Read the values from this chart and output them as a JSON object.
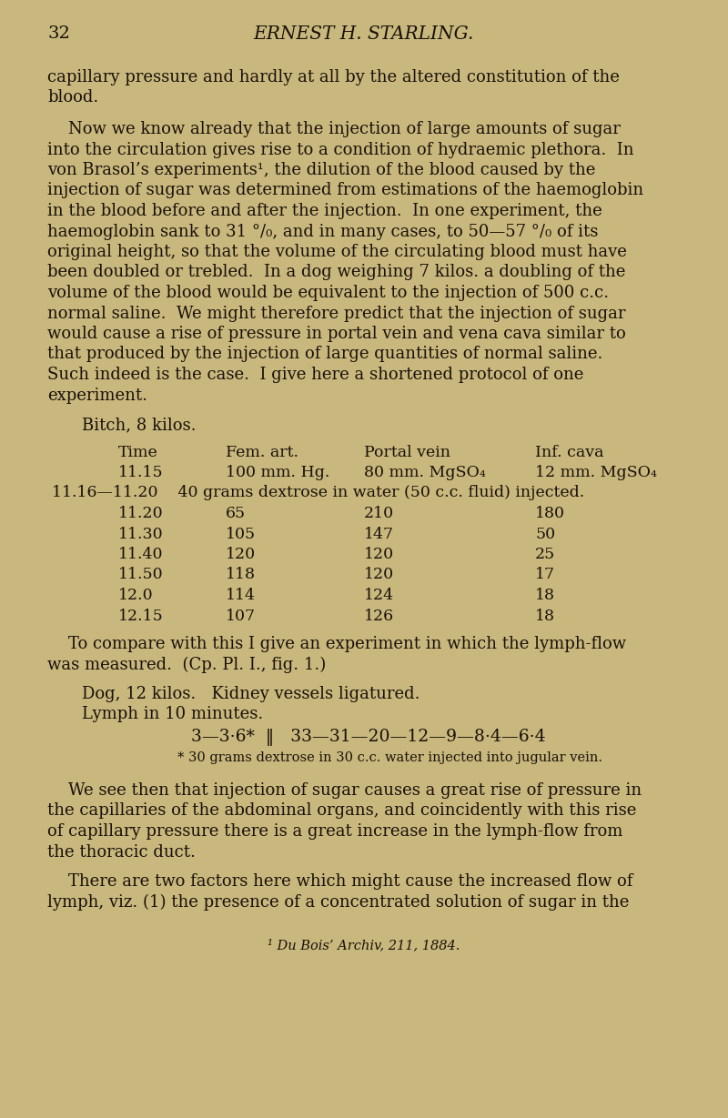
{
  "bg_color": "#c9b87e",
  "text_color": "#1a1008",
  "page_number": "32",
  "header": "ERNEST H. STARLING.",
  "font_family": "DejaVu Serif",
  "para1_lines": [
    "capillary pressure and hardly at all by the altered constitution of the",
    "blood."
  ],
  "para2_lines": [
    "    Now we know already that the injection of large amounts of sugar",
    "into the circulation gives rise to a condition of hydraemic plethora.  In",
    "von Brasol’s experiments¹, the dilution of the blood caused by the",
    "injection of sugar was determined from estimations of the haemoglobin",
    "in the blood before and after the injection.  In one experiment, the",
    "haemoglobin sank to 31 °/₀, and in many cases, to 50—57 °/₀ of its",
    "original height, so that the volume of the circulating blood must have",
    "been doubled or trebled.  In a dog weighing 7 kilos. a doubling of the",
    "volume of the blood would be equivalent to the injection of 500 c.c.",
    "normal saline.  We might therefore predict that the injection of sugar",
    "would cause a rise of pressure in portal vein and vena cava similar to",
    "that produced by the injection of large quantities of normal saline.",
    "Such indeed is the case.  I give here a shortened protocol of one",
    "experiment."
  ],
  "bitch_line": "Bitch, 8 kilos.",
  "table_header": [
    "Time",
    "Fem. art.",
    "Portal vein",
    "Inf. cava"
  ],
  "table_row0_time": "11.15",
  "table_row0_fem": "100 mm. Hg.",
  "table_row0_portal": "80 mm. MgSO₄",
  "table_row0_cava": "12 mm. MgSO₄",
  "table_injection_row": "11.16—11.20    40 grams dextrose in water (50 c.c. fluid) injected.",
  "table_data": [
    [
      "11.20",
      "65",
      "210",
      "180"
    ],
    [
      "11.30",
      "105",
      "147",
      "50"
    ],
    [
      "11.40",
      "120",
      "120",
      "25"
    ],
    [
      "11.50",
      "118",
      "120",
      "17"
    ],
    [
      "12.0",
      "114",
      "124",
      "18"
    ],
    [
      "12.15",
      "107",
      "126",
      "18"
    ]
  ],
  "compare_lines": [
    "    To compare with this I give an experiment in which the lymph-flow",
    "was measured.  (Cp. Pl. I., fig. 1.)"
  ],
  "dog_line": "Dog, 12 kilos.   Kidney vessels ligatured.",
  "lymph_line": "Lymph in 10 minutes.",
  "lymph_data": "3—3·6*  ‖   33—31—20—12—9—8·4—6·4",
  "footnote_star": "* 30 grams dextrose in 30 c.c. water injected into jugular vein.",
  "wesee_lines": [
    "    We see then that injection of sugar causes a great rise of pressure in",
    "the capillaries of the abdominal organs, and coincidently with this rise",
    "of capillary pressure there is a great increase in the lymph-flow from",
    "the thoracic duct."
  ],
  "twofactors_lines": [
    "    There are two factors here which might cause the increased flow of",
    "lymph, viz. (1) the presence of a concentrated solution of sugar in the"
  ],
  "footnote_1": "¹ Du Bois’ Archiv, 211, 1884."
}
